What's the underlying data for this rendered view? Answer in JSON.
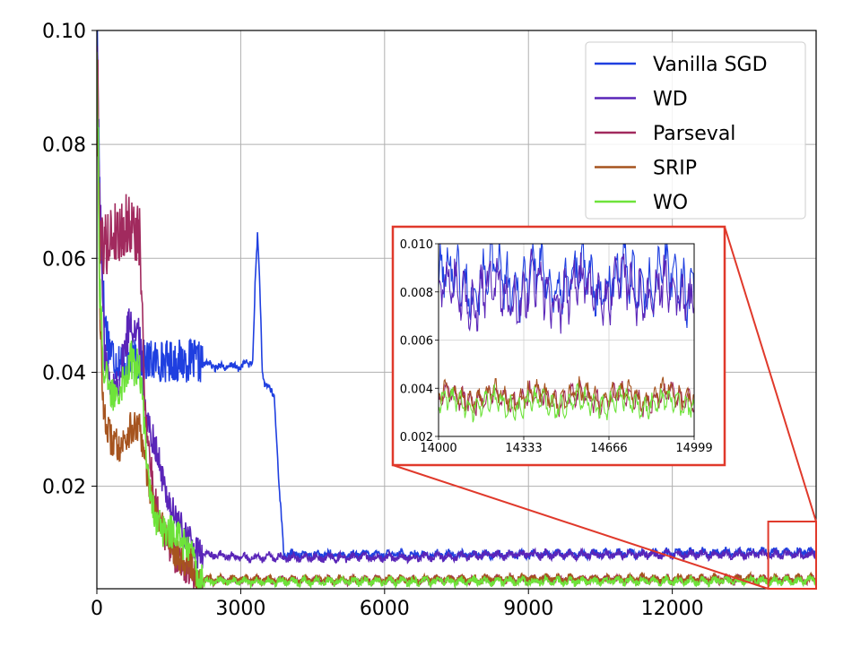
{
  "chart_data": {
    "type": "line",
    "title": "",
    "xlabel": "",
    "ylabel": "",
    "xlim": [
      0,
      14999
    ],
    "ylim": [
      0.002,
      0.1
    ],
    "xticks": [
      "0",
      "3000",
      "6000",
      "9000",
      "12000"
    ],
    "yticks": [
      "0.02",
      "0.04",
      "0.06",
      "0.08",
      "0.10"
    ],
    "grid": true,
    "legend_position": "top-right",
    "series": [
      {
        "name": "Vanilla SGD",
        "color": "#1f3fe0",
        "x": [
          0,
          60,
          150,
          250,
          400,
          700,
          1000,
          1500,
          2000,
          2500,
          3000,
          3250,
          3300,
          3350,
          3400,
          3450,
          3500,
          3700,
          3800,
          3900,
          6000,
          9000,
          12000,
          14999
        ],
        "y": [
          0.1,
          0.072,
          0.05,
          0.045,
          0.042,
          0.042,
          0.042,
          0.042,
          0.042,
          0.041,
          0.041,
          0.042,
          0.055,
          0.064,
          0.055,
          0.04,
          0.038,
          0.036,
          0.02,
          0.008,
          0.008,
          0.008,
          0.0083,
          0.0085
        ]
      },
      {
        "name": "WD",
        "color": "#5a25b8",
        "x": [
          0,
          60,
          150,
          300,
          500,
          700,
          900,
          1000,
          1100,
          1200,
          1400,
          1600,
          1800,
          2000,
          2100,
          2300,
          3000,
          6000,
          9000,
          12000,
          14999
        ],
        "y": [
          0.1,
          0.07,
          0.045,
          0.036,
          0.04,
          0.05,
          0.045,
          0.035,
          0.03,
          0.028,
          0.02,
          0.015,
          0.012,
          0.01,
          0.008,
          0.008,
          0.0075,
          0.0075,
          0.008,
          0.008,
          0.008
        ]
      },
      {
        "name": "Parseval",
        "color": "#a12a5e",
        "x": [
          0,
          60,
          150,
          300,
          500,
          700,
          900,
          1000,
          1100,
          1200,
          1400,
          1600,
          1800,
          2000,
          2100,
          2300,
          3000,
          6000,
          9000,
          12000,
          14999
        ],
        "y": [
          0.1,
          0.065,
          0.062,
          0.064,
          0.065,
          0.066,
          0.063,
          0.035,
          0.025,
          0.018,
          0.012,
          0.008,
          0.006,
          0.005,
          0.0035,
          0.0035,
          0.0035,
          0.0035,
          0.0036,
          0.0036,
          0.0036
        ]
      },
      {
        "name": "SRIP",
        "color": "#a6541f",
        "x": [
          0,
          60,
          150,
          300,
          500,
          700,
          900,
          1000,
          1100,
          1200,
          1400,
          1600,
          1800,
          2000,
          2100,
          2300,
          3000,
          6000,
          9000,
          12000,
          14999
        ],
        "y": [
          0.1,
          0.05,
          0.032,
          0.028,
          0.027,
          0.03,
          0.03,
          0.024,
          0.02,
          0.016,
          0.012,
          0.009,
          0.007,
          0.006,
          0.004,
          0.0036,
          0.0036,
          0.0036,
          0.0037,
          0.0037,
          0.0037
        ]
      },
      {
        "name": "WO",
        "color": "#6ee33a",
        "x": [
          0,
          60,
          150,
          300,
          500,
          700,
          900,
          1000,
          1100,
          1200,
          1400,
          1600,
          1800,
          2000,
          2100,
          2300,
          3000,
          6000,
          9000,
          12000,
          14999
        ],
        "y": [
          0.1,
          0.055,
          0.04,
          0.036,
          0.038,
          0.042,
          0.04,
          0.03,
          0.02,
          0.015,
          0.012,
          0.012,
          0.01,
          0.008,
          0.0035,
          0.0033,
          0.0033,
          0.0033,
          0.0033,
          0.0033,
          0.0034
        ]
      }
    ],
    "inset": {
      "xlim": [
        14000,
        14999
      ],
      "ylim": [
        0.002,
        0.01
      ],
      "xticks": [
        "14000",
        "14333",
        "14666",
        "14999"
      ],
      "yticks": [
        "0.002",
        "0.004",
        "0.006",
        "0.008",
        "0.010"
      ],
      "border_color": "#e0392b"
    }
  }
}
